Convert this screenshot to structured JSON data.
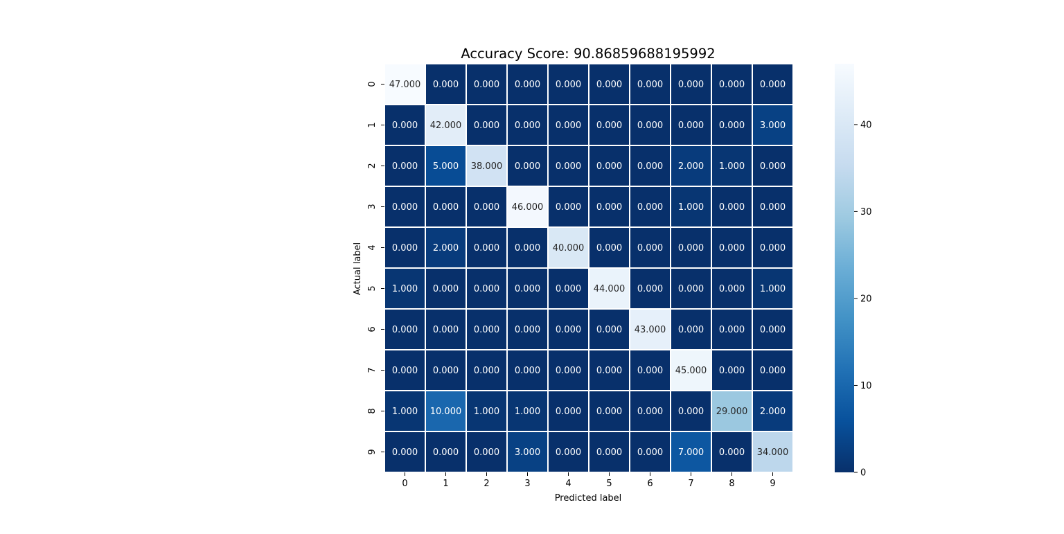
{
  "chart_data": {
    "type": "heatmap",
    "title": "Accuracy Score: 90.86859688195992",
    "xlabel": "Predicted label",
    "ylabel": "Actual label",
    "x_categories": [
      "0",
      "1",
      "2",
      "3",
      "4",
      "5",
      "6",
      "7",
      "8",
      "9"
    ],
    "y_categories": [
      "0",
      "1",
      "2",
      "3",
      "4",
      "5",
      "6",
      "7",
      "8",
      "9"
    ],
    "values": [
      [
        47,
        0,
        0,
        0,
        0,
        0,
        0,
        0,
        0,
        0
      ],
      [
        0,
        42,
        0,
        0,
        0,
        0,
        0,
        0,
        0,
        3
      ],
      [
        0,
        5,
        38,
        0,
        0,
        0,
        0,
        2,
        1,
        0
      ],
      [
        0,
        0,
        0,
        46,
        0,
        0,
        0,
        1,
        0,
        0
      ],
      [
        0,
        2,
        0,
        0,
        40,
        0,
        0,
        0,
        0,
        0
      ],
      [
        1,
        0,
        0,
        0,
        0,
        44,
        0,
        0,
        0,
        1
      ],
      [
        0,
        0,
        0,
        0,
        0,
        0,
        43,
        0,
        0,
        0
      ],
      [
        0,
        0,
        0,
        0,
        0,
        0,
        0,
        45,
        0,
        0
      ],
      [
        1,
        10,
        1,
        1,
        0,
        0,
        0,
        0,
        29,
        2
      ],
      [
        0,
        0,
        0,
        3,
        0,
        0,
        0,
        7,
        0,
        34
      ]
    ],
    "cell_labels": [
      [
        "47.000",
        "0.000",
        "0.000",
        "0.000",
        "0.000",
        "0.000",
        "0.000",
        "0.000",
        "0.000",
        "0.000"
      ],
      [
        "0.000",
        "42.000",
        "0.000",
        "0.000",
        "0.000",
        "0.000",
        "0.000",
        "0.000",
        "0.000",
        "3.000"
      ],
      [
        "0.000",
        "5.000",
        "38.000",
        "0.000",
        "0.000",
        "0.000",
        "0.000",
        "2.000",
        "1.000",
        "0.000"
      ],
      [
        "0.000",
        "0.000",
        "0.000",
        "46.000",
        "0.000",
        "0.000",
        "0.000",
        "1.000",
        "0.000",
        "0.000"
      ],
      [
        "0.000",
        "2.000",
        "0.000",
        "0.000",
        "40.000",
        "0.000",
        "0.000",
        "0.000",
        "0.000",
        "0.000"
      ],
      [
        "1.000",
        "0.000",
        "0.000",
        "0.000",
        "0.000",
        "44.000",
        "0.000",
        "0.000",
        "0.000",
        "1.000"
      ],
      [
        "0.000",
        "0.000",
        "0.000",
        "0.000",
        "0.000",
        "0.000",
        "43.000",
        "0.000",
        "0.000",
        "0.000"
      ],
      [
        "0.000",
        "0.000",
        "0.000",
        "0.000",
        "0.000",
        "0.000",
        "0.000",
        "45.000",
        "0.000",
        "0.000"
      ],
      [
        "1.000",
        "10.000",
        "1.000",
        "1.000",
        "0.000",
        "0.000",
        "0.000",
        "0.000",
        "29.000",
        "2.000"
      ],
      [
        "0.000",
        "0.000",
        "0.000",
        "3.000",
        "0.000",
        "0.000",
        "0.000",
        "7.000",
        "0.000",
        "34.000"
      ]
    ],
    "colormap": "Blues_r",
    "value_range": [
      0,
      47
    ],
    "colorbar_ticks": [
      0,
      10,
      20,
      30,
      40
    ],
    "colorbar_tick_labels": [
      "0",
      "10",
      "20",
      "30",
      "40"
    ],
    "grid": false,
    "colors": {
      "cell_border": "#ffffff",
      "high": "#f7fbff",
      "low": "#08306b"
    }
  }
}
